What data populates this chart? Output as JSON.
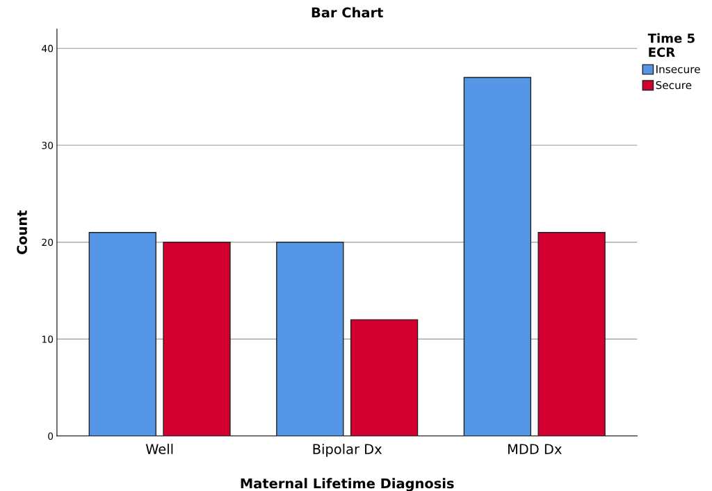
{
  "chart_data": {
    "type": "bar",
    "title": "Bar Chart",
    "xlabel": "Maternal Lifetime Diagnosis",
    "ylabel": "Count",
    "legend_title": "Time 5\nECR",
    "categories": [
      "Well",
      "Bipolar Dx",
      "MDD Dx"
    ],
    "series": [
      {
        "name": "Insecure",
        "color": "#5596e6",
        "values": [
          21,
          20,
          37
        ]
      },
      {
        "name": "Secure",
        "color": "#d3002f",
        "values": [
          20,
          12,
          21
        ]
      }
    ],
    "ylim": [
      0,
      42
    ],
    "yticks": [
      0,
      10,
      20,
      30,
      40
    ],
    "grid": "y",
    "legend": "top right"
  }
}
